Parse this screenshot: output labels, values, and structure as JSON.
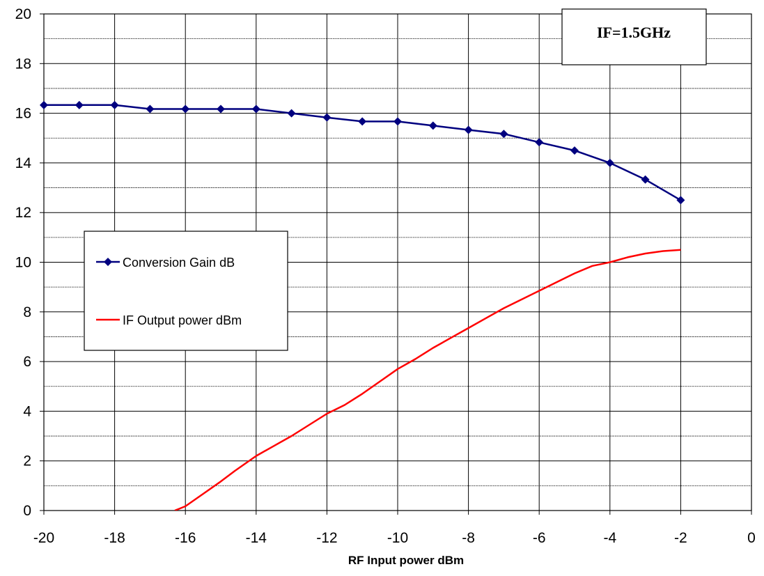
{
  "chart_data": {
    "type": "line",
    "title": "",
    "xlabel": "RF Input power dBm",
    "ylabel": "",
    "xlim": [
      -20,
      0
    ],
    "ylim": [
      0,
      20
    ],
    "x_ticks": [
      "-20",
      "-18",
      "-16",
      "-14",
      "-12",
      "-10",
      "-8",
      "-6",
      "-4",
      "-2",
      "0"
    ],
    "y_ticks": [
      "0",
      "2",
      "4",
      "6",
      "8",
      "10",
      "12",
      "14",
      "16",
      "18",
      "20"
    ],
    "grid": "major and minor horizontal, major vertical",
    "legend_placement": "center-left",
    "annotation": "IF=1.5GHz",
    "series": [
      {
        "name": "Conversion Gain dB",
        "color": "#00007F",
        "marker": "diamond",
        "x": [
          -20,
          -19,
          -18,
          -17,
          -16,
          -15,
          -14,
          -13,
          -12,
          -11,
          -10,
          -9,
          -8,
          -7,
          -6,
          -5,
          -4,
          -3,
          -2
        ],
        "y": [
          16.33,
          16.33,
          16.33,
          16.17,
          16.17,
          16.17,
          16.17,
          16.0,
          15.83,
          15.67,
          15.67,
          15.5,
          15.33,
          15.17,
          14.83,
          14.5,
          14.0,
          13.33,
          12.5
        ]
      },
      {
        "name": "IF Output power dBm",
        "color": "#FF0000",
        "marker": "none",
        "x": [
          -16.3,
          -16.0,
          -15.5,
          -15.0,
          -14.6,
          -14.0,
          -13.5,
          -13.0,
          -12.5,
          -12.0,
          -11.5,
          -11.0,
          -10.5,
          -10.0,
          -9.5,
          -9.0,
          -8.5,
          -8.0,
          -7.5,
          -7.0,
          -6.5,
          -6.0,
          -5.5,
          -5.0,
          -4.5,
          -4.0,
          -3.5,
          -3.0,
          -2.5,
          -2.0
        ],
        "y": [
          0.0,
          0.17,
          0.67,
          1.17,
          1.6,
          2.2,
          2.6,
          3.0,
          3.45,
          3.9,
          4.25,
          4.7,
          5.2,
          5.7,
          6.1,
          6.55,
          6.95,
          7.35,
          7.75,
          8.15,
          8.5,
          8.85,
          9.2,
          9.55,
          9.85,
          10.0,
          10.2,
          10.35,
          10.45,
          10.5
        ]
      }
    ]
  }
}
